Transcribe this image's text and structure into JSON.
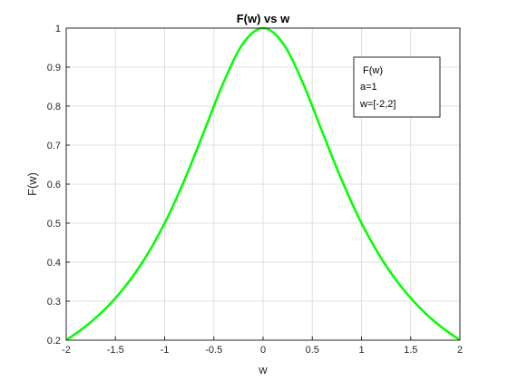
{
  "chart_data": {
    "type": "line",
    "title": "F(w) vs w",
    "xlabel": "w",
    "ylabel": "F(w)",
    "xlim": [
      -2,
      2
    ],
    "ylim": [
      0.2,
      1
    ],
    "xticks": [
      -2,
      -1.5,
      -1,
      -0.5,
      0,
      0.5,
      1,
      1.5,
      2
    ],
    "xtick_labels": [
      "-2",
      "-1.5",
      "-1",
      "-0.5",
      "0",
      "0.5",
      "1",
      "1.5",
      "2"
    ],
    "yticks": [
      0.2,
      0.3,
      0.4,
      0.5,
      0.6,
      0.7,
      0.8,
      0.9,
      1
    ],
    "ytick_labels": [
      "0.2",
      "0.3",
      "0.4",
      "0.5",
      "0.6",
      "0.7",
      "0.8",
      "0.9",
      "1"
    ],
    "grid": true,
    "legend_placement": "top-right",
    "legend": [
      "F(w)",
      "a=1",
      "w=[-2,2]"
    ],
    "series": [
      {
        "color": "#00ff00",
        "x": [
          -2,
          -1.8,
          -1.6,
          -1.4,
          -1.2,
          -1,
          -0.8,
          -0.6,
          -0.4,
          -0.2,
          0,
          0.2,
          0.4,
          0.6,
          0.8,
          1,
          1.2,
          1.4,
          1.6,
          1.8,
          2
        ],
        "y": [
          0.2,
          0.236,
          0.281,
          0.338,
          0.41,
          0.5,
          0.61,
          0.735,
          0.862,
          0.962,
          1,
          0.962,
          0.862,
          0.735,
          0.61,
          0.5,
          0.41,
          0.338,
          0.281,
          0.236,
          0.2
        ]
      }
    ]
  }
}
